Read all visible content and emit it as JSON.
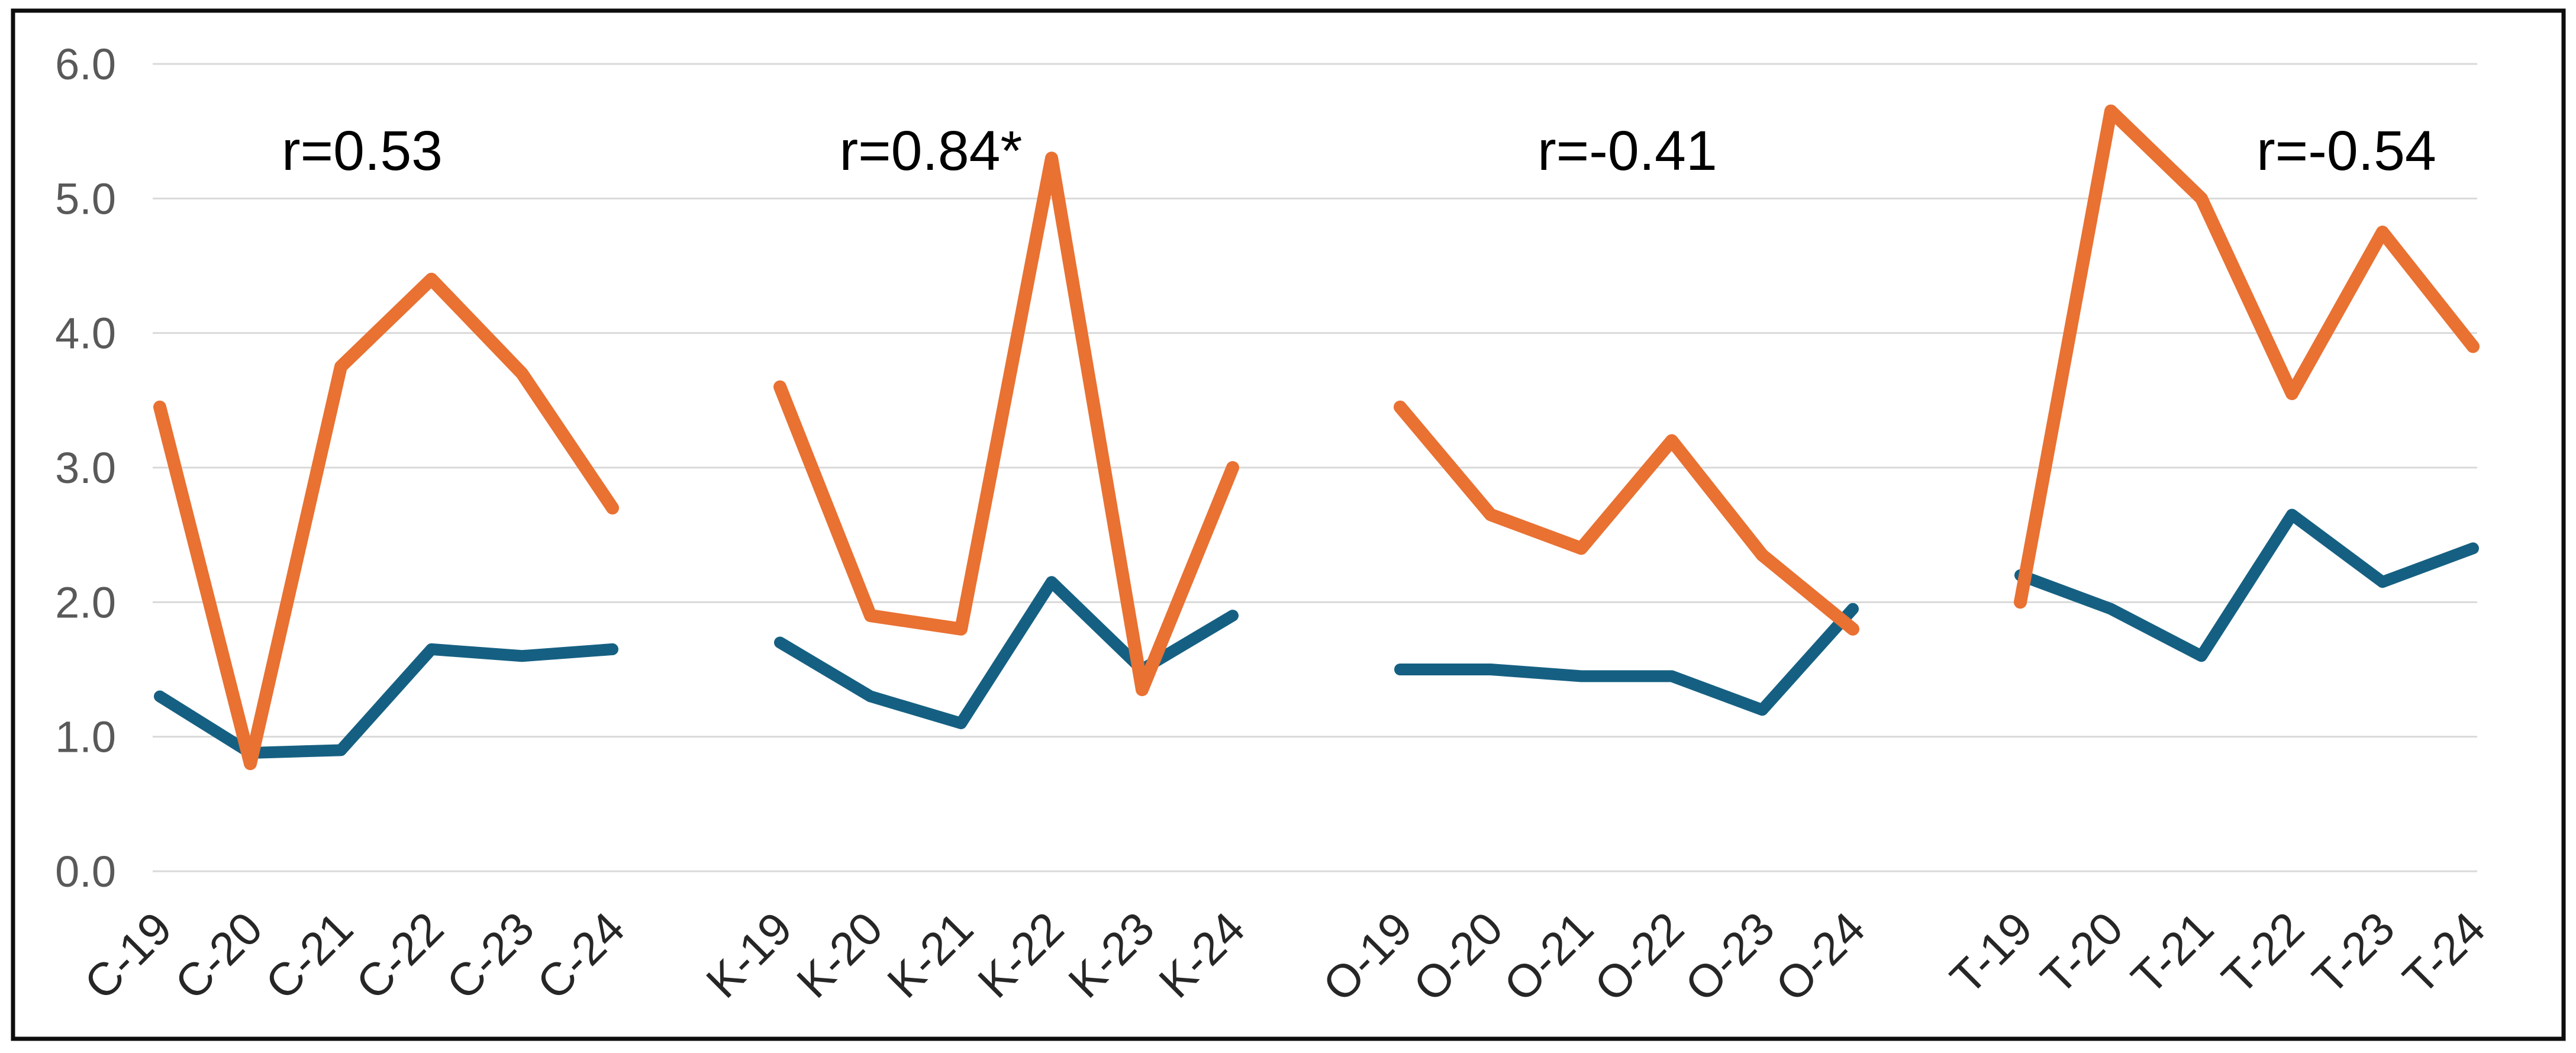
{
  "chart_data": {
    "type": "line",
    "title": "",
    "legend": "none",
    "grid": true,
    "y_axis": {
      "min": 0,
      "max": 6,
      "tick_values": [
        6,
        5,
        4,
        3,
        2,
        1,
        0
      ],
      "tick_labels": [
        "6.0",
        "5.0",
        "4.0",
        "3.0",
        "2.0",
        "1.0",
        "0.0"
      ]
    },
    "groups": [
      {
        "name": "C",
        "annotation": "r=0.53",
        "categories": [
          "C-19",
          "C-20",
          "C-21",
          "C-22",
          "C-23",
          "C-24"
        ],
        "series": [
          {
            "name": "teal-series",
            "color_key": "teal",
            "values": [
              1.3,
              0.88,
              0.9,
              1.65,
              1.6,
              1.65
            ]
          },
          {
            "name": "orange-series",
            "color_key": "orange",
            "values": [
              3.45,
              0.8,
              3.75,
              4.4,
              3.7,
              2.7
            ]
          }
        ]
      },
      {
        "name": "K",
        "annotation": "r=0.84*",
        "categories": [
          "K-19",
          "K-20",
          "K-21",
          "K-22",
          "K-23",
          "K-24"
        ],
        "series": [
          {
            "name": "teal-series",
            "color_key": "teal",
            "values": [
              1.7,
              1.3,
              1.1,
              2.15,
              1.5,
              1.9
            ]
          },
          {
            "name": "orange-series",
            "color_key": "orange",
            "values": [
              3.6,
              1.9,
              1.8,
              5.3,
              1.35,
              3.0
            ]
          }
        ]
      },
      {
        "name": "O",
        "annotation": "r=-0.41",
        "categories": [
          "O-19",
          "O-20",
          "O-21",
          "O-22",
          "O-23",
          "O-24"
        ],
        "series": [
          {
            "name": "teal-series",
            "color_key": "teal",
            "values": [
              1.5,
              1.5,
              1.45,
              1.45,
              1.2,
              1.95
            ]
          },
          {
            "name": "orange-series",
            "color_key": "orange",
            "values": [
              3.45,
              2.65,
              2.4,
              3.2,
              2.35,
              1.8
            ]
          }
        ]
      },
      {
        "name": "T",
        "annotation": "r=-0.54",
        "categories": [
          "T-19",
          "T-20",
          "T-21",
          "T-22",
          "T-23",
          "T-24"
        ],
        "series": [
          {
            "name": "teal-series",
            "color_key": "teal",
            "values": [
              2.2,
              1.95,
              1.6,
              2.65,
              2.15,
              2.4
            ]
          },
          {
            "name": "orange-series",
            "color_key": "orange",
            "values": [
              2.0,
              5.65,
              5.0,
              3.55,
              4.75,
              3.9
            ]
          }
        ]
      }
    ],
    "colors": {
      "orange": "#E97132",
      "teal": "#156082",
      "gridline": "#D9D9D9",
      "y_tick_label": "#595959",
      "category_label": "#262626",
      "annotation_text": "#000000",
      "frame": "#0D0D0D",
      "background": "#FFFFFF"
    }
  }
}
